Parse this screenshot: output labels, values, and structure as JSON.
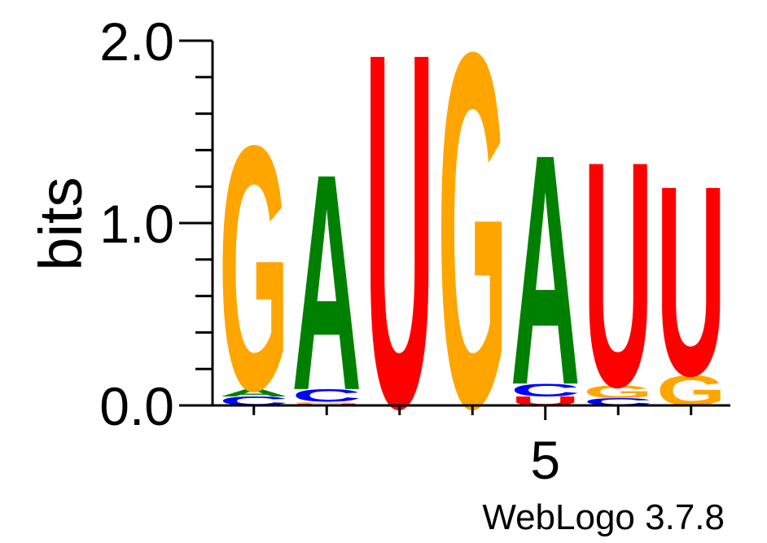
{
  "chart_data": {
    "type": "sequence-logo",
    "ylabel": "bits",
    "ylim": [
      0,
      2
    ],
    "y_ticks": [
      "0.0",
      "1.0",
      "2.0"
    ],
    "x_tick_labels": [
      {
        "position": 5,
        "label": "5"
      }
    ],
    "credit": "WebLogo 3.7.8",
    "colors": {
      "A": "#008000",
      "C": "#0000ff",
      "G": "#ffa500",
      "U": "#ff0000"
    },
    "positions": [
      {
        "pos": 1,
        "stack": [
          {
            "letter": "C",
            "bits": 0.05
          },
          {
            "letter": "A",
            "bits": 0.04
          },
          {
            "letter": "G",
            "bits": 1.38
          }
        ]
      },
      {
        "pos": 2,
        "stack": [
          {
            "letter": "U",
            "bits": 0.01
          },
          {
            "letter": "G",
            "bits": 0.01
          },
          {
            "letter": "C",
            "bits": 0.07
          },
          {
            "letter": "A",
            "bits": 1.22
          }
        ]
      },
      {
        "pos": 3,
        "stack": [
          {
            "letter": "U",
            "bits": 2.0
          }
        ]
      },
      {
        "pos": 4,
        "stack": [
          {
            "letter": "G",
            "bits": 2.0
          }
        ]
      },
      {
        "pos": 5,
        "stack": [
          {
            "letter": "U",
            "bits": 0.05
          },
          {
            "letter": "C",
            "bits": 0.07
          },
          {
            "letter": "A",
            "bits": 1.3
          }
        ]
      },
      {
        "pos": 6,
        "stack": [
          {
            "letter": "C",
            "bits": 0.04
          },
          {
            "letter": "G",
            "bits": 0.07
          },
          {
            "letter": "U",
            "bits": 1.27
          }
        ]
      },
      {
        "pos": 7,
        "stack": [
          {
            "letter": "G",
            "bits": 0.17
          },
          {
            "letter": "U",
            "bits": 1.07
          }
        ]
      }
    ]
  }
}
